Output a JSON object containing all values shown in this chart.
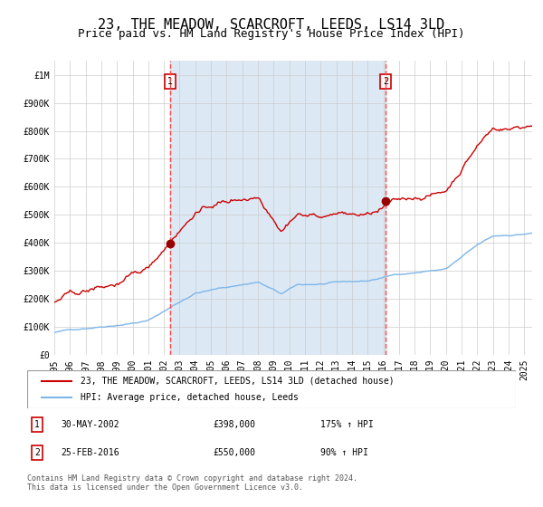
{
  "title": "23, THE MEADOW, SCARCROFT, LEEDS, LS14 3LD",
  "subtitle": "Price paid vs. HM Land Registry's House Price Index (HPI)",
  "title_fontsize": 11,
  "subtitle_fontsize": 9,
  "ylabel_fontsize": 8,
  "tick_fontsize": 7,
  "ylim": [
    0,
    1050000
  ],
  "yticks": [
    0,
    100000,
    200000,
    300000,
    400000,
    500000,
    600000,
    700000,
    800000,
    900000,
    1000000
  ],
  "ytick_labels": [
    "£0",
    "£100K",
    "£200K",
    "£300K",
    "£400K",
    "£500K",
    "£600K",
    "£700K",
    "£800K",
    "£900K",
    "£1M"
  ],
  "xmin_year": 1995.0,
  "xmax_year": 2025.5,
  "sale1_x": 2002.41,
  "sale1_y": 398000,
  "sale2_x": 2016.15,
  "sale2_y": 550000,
  "bg_shade_color": "#dce9f5",
  "grid_color": "#cccccc",
  "hpi_line_color": "#7eb6e8",
  "price_line_color": "#cc0000",
  "sale_dot_color": "#990000",
  "dashed_line_color": "#ff4444",
  "legend_label1": "23, THE MEADOW, SCARCROFT, LEEDS, LS14 3LD (detached house)",
  "legend_label2": "HPI: Average price, detached house, Leeds",
  "annotation1_label": "1",
  "annotation2_label": "2",
  "table_row1": [
    "1",
    "30-MAY-2002",
    "£398,000",
    "175% ↑ HPI"
  ],
  "table_row2": [
    "2",
    "25-FEB-2016",
    "£550,000",
    "90% ↑ HPI"
  ],
  "footer": "Contains HM Land Registry data © Crown copyright and database right 2024.\nThis data is licensed under the Open Government Licence v3.0.",
  "xtick_years": [
    1995,
    1996,
    1997,
    1998,
    1999,
    2000,
    2001,
    2002,
    2003,
    2004,
    2005,
    2006,
    2007,
    2008,
    2009,
    2010,
    2011,
    2012,
    2013,
    2014,
    2015,
    2016,
    2017,
    2018,
    2019,
    2020,
    2021,
    2022,
    2023,
    2024,
    2025
  ]
}
